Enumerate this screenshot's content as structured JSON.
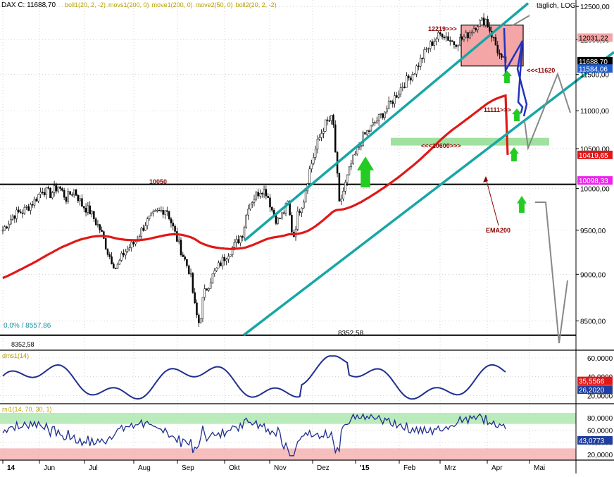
{
  "chart_data": {
    "type": "line",
    "header": {
      "symbol": "DAX C: 11688,70",
      "indicators": [
        "boll1(20, 2, -2)",
        "movs1(200, 0)",
        "move1(200, 0)",
        "move2(50, 0)",
        "boll2(20, 2, -2)"
      ],
      "scale_label": "täglich, LOG"
    },
    "x_months": [
      "14",
      "Jun",
      "Jul",
      "Aug",
      "Sep",
      "Okt",
      "Nov",
      "Dez",
      "'15",
      "Feb",
      "Mrz",
      "Apr",
      "Mai"
    ],
    "price_axis": {
      "ticks": [
        8500,
        9000,
        9500,
        10000,
        10500,
        11000,
        11500,
        12000,
        12500
      ],
      "tick_labels": [
        "8500,00",
        "9000,00",
        "9500,00",
        "10000,00",
        "10500,00",
        "11000,00",
        "11500,00",
        "12000,00",
        "12500,00"
      ],
      "range": [
        8250,
        12600
      ],
      "log": true
    },
    "price_badges": [
      {
        "text": "12031,22",
        "value": 12031.22,
        "color": "#f4a6a6",
        "text_color": "#000000"
      },
      {
        "text": "11688,70",
        "value": 11688.7,
        "color": "#000000",
        "text_color": "#ffffff"
      },
      {
        "text": "11584,06",
        "value": 11584.06,
        "color": "#1f5fd1",
        "text_color": "#ffffff"
      },
      {
        "text": "10419,65",
        "value": 10419.65,
        "color": "#e01818",
        "text_color": "#ffffff"
      },
      {
        "text": "10098,33",
        "value": 10098.33,
        "color": "#ee22ee",
        "text_color": "#ffffff"
      }
    ],
    "levels": [
      {
        "label": "10050",
        "value": 10050
      },
      {
        "label": "8352,58",
        "value": 8352.58
      }
    ],
    "level_8352_left_label": "8352,58",
    "annotations": {
      "box_label": "12219>>>",
      "box_top": 12219,
      "box_bottom": 11620,
      "label_11620": "<<<11620",
      "label_11111": "11111>>>",
      "label_10600": "<<<10600>>>",
      "zone_10600": [
        10540,
        10640
      ],
      "ema_label": "EMA200",
      "fib_label": "0,0% / 8557,86"
    },
    "series": [
      {
        "name": "DAX",
        "color": "#000000"
      },
      {
        "name": "EMA200",
        "color": "#e01818"
      }
    ],
    "dms_panel": {
      "label": "dms1(14)",
      "ticks": [
        20,
        40,
        60
      ],
      "tick_labels": [
        "20,0000",
        "40,0000",
        "60,0000"
      ],
      "badges": [
        {
          "text": "35,5566",
          "value": 35.5566,
          "color": "#e01818"
        },
        {
          "text": "26,2020",
          "value": 26.202,
          "color": "#1f3f9f"
        }
      ]
    },
    "rsi_panel": {
      "label": "rsi1(14, 70, 30, 1)",
      "ticks": [
        20,
        40,
        60,
        80
      ],
      "tick_labels": [
        "20,0000",
        "40,0000",
        "60,0000",
        "80,0000"
      ],
      "overbought": 70,
      "oversold": 30,
      "badges": [
        {
          "text": "43,0773",
          "value": 43.0773,
          "color": "#1f3f9f"
        }
      ]
    }
  }
}
